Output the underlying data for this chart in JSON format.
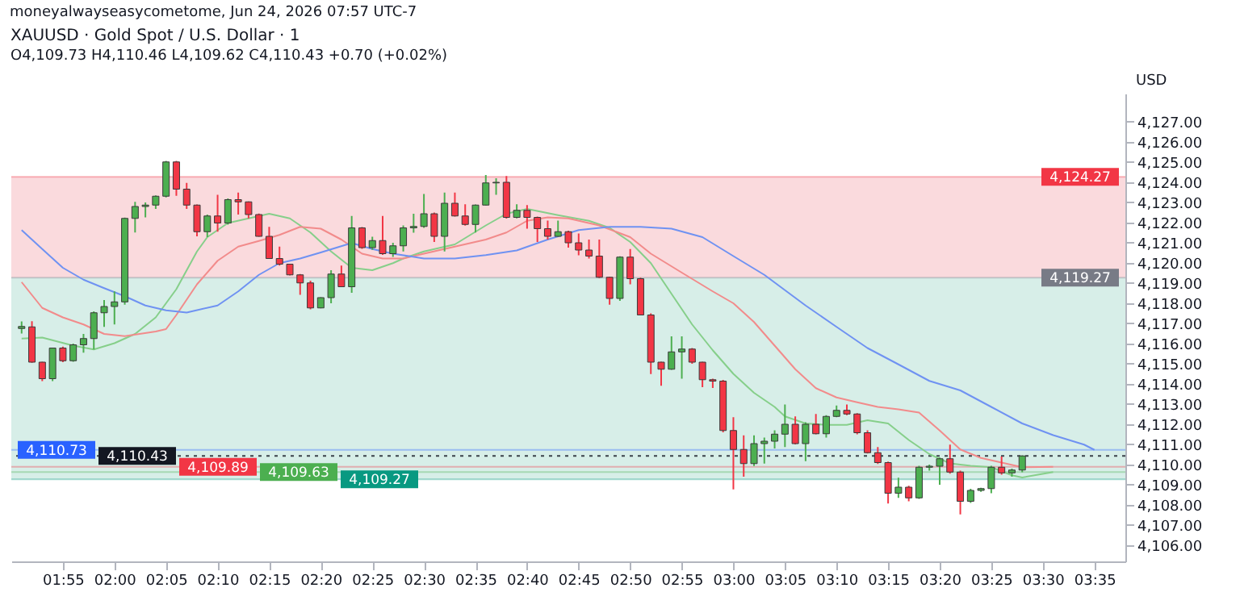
{
  "chart_data": {
    "type": "candlestick",
    "title": "XAUUSD · Gold Spot / U.S. Dollar · 1",
    "subtitle": "O4,109.73 H4,110.46 L4,109.62 C4,110.43 +0.70 (+0.02%)",
    "annotations": [
      "moneyalwayseasycometome, Jun 24, 2026 07:57 UTC-7"
    ],
    "ylabel": "USD",
    "x": [
      "2026-06-24T01:51",
      "2026-06-24T01:52",
      "2026-06-24T01:53",
      "2026-06-24T01:54",
      "2026-06-24T01:55",
      "2026-06-24T01:56",
      "2026-06-24T01:57",
      "2026-06-24T01:58",
      "2026-06-24T01:59",
      "2026-06-24T02:00",
      "2026-06-24T02:01",
      "2026-06-24T02:02",
      "2026-06-24T02:03",
      "2026-06-24T02:04",
      "2026-06-24T02:05",
      "2026-06-24T02:06",
      "2026-06-24T02:07",
      "2026-06-24T02:08",
      "2026-06-24T02:09",
      "2026-06-24T02:10",
      "2026-06-24T02:11",
      "2026-06-24T02:12",
      "2026-06-24T02:13",
      "2026-06-24T02:14",
      "2026-06-24T02:15",
      "2026-06-24T02:16",
      "2026-06-24T02:17",
      "2026-06-24T02:18",
      "2026-06-24T02:19",
      "2026-06-24T02:20",
      "2026-06-24T02:21",
      "2026-06-24T02:22",
      "2026-06-24T02:23",
      "2026-06-24T02:24",
      "2026-06-24T02:25",
      "2026-06-24T02:26",
      "2026-06-24T02:27",
      "2026-06-24T02:28",
      "2026-06-24T02:29",
      "2026-06-24T02:30",
      "2026-06-24T02:31",
      "2026-06-24T02:32",
      "2026-06-24T02:33",
      "2026-06-24T02:34",
      "2026-06-24T02:35",
      "2026-06-24T02:36",
      "2026-06-24T02:37",
      "2026-06-24T02:38",
      "2026-06-24T02:39",
      "2026-06-24T02:40",
      "2026-06-24T02:41",
      "2026-06-24T02:42",
      "2026-06-24T02:43",
      "2026-06-24T02:44",
      "2026-06-24T02:45",
      "2026-06-24T02:46",
      "2026-06-24T02:47",
      "2026-06-24T02:48",
      "2026-06-24T02:49",
      "2026-06-24T02:50",
      "2026-06-24T02:51",
      "2026-06-24T02:52",
      "2026-06-24T02:53",
      "2026-06-24T02:54",
      "2026-06-24T02:55",
      "2026-06-24T02:56",
      "2026-06-24T02:57",
      "2026-06-24T02:58",
      "2026-06-24T02:59",
      "2026-06-24T03:00",
      "2026-06-24T03:01",
      "2026-06-24T03:02",
      "2026-06-24T03:03",
      "2026-06-24T03:04",
      "2026-06-24T03:05",
      "2026-06-24T03:06",
      "2026-06-24T03:07",
      "2026-06-24T03:08",
      "2026-06-24T03:09",
      "2026-06-24T03:10",
      "2026-06-24T03:11",
      "2026-06-24T03:12",
      "2026-06-24T03:13",
      "2026-06-24T03:14",
      "2026-06-24T03:15",
      "2026-06-24T03:16",
      "2026-06-24T03:17",
      "2026-06-24T03:18",
      "2026-06-24T03:19",
      "2026-06-24T03:20",
      "2026-06-24T03:21",
      "2026-06-24T03:22",
      "2026-06-24T03:23",
      "2026-06-24T03:24",
      "2026-06-24T03:25",
      "2026-06-24T03:26",
      "2026-06-24T03:27",
      "2026-06-24T03:28"
    ],
    "ohlc": [
      [
        4116.75,
        4117.1,
        4116.5,
        4116.85
      ],
      [
        4116.83,
        4117.11,
        4115.05,
        4115.08
      ],
      [
        4115.08,
        4115.1,
        4114.14,
        4114.26
      ],
      [
        4114.26,
        4115.8,
        4114.14,
        4115.78
      ],
      [
        4115.78,
        4115.85,
        4115.08,
        4115.15
      ],
      [
        4115.15,
        4116.0,
        4115.1,
        4115.94
      ],
      [
        4115.94,
        4116.48,
        4115.55,
        4116.25
      ],
      [
        4116.25,
        4117.6,
        4115.71,
        4117.53
      ],
      [
        4117.53,
        4118.16,
        4116.83,
        4117.84
      ],
      [
        4117.84,
        4118.59,
        4116.95,
        4118.07
      ],
      [
        4118.07,
        4122.25,
        4117.93,
        4122.21
      ],
      [
        4122.21,
        4123.03,
        4121.51,
        4122.8
      ],
      [
        4122.8,
        4123.0,
        4122.26,
        4122.87
      ],
      [
        4122.87,
        4123.35,
        4122.68,
        4123.31
      ],
      [
        4123.31,
        4125.06,
        4123.25,
        4125.01
      ],
      [
        4125.01,
        4125.06,
        4123.33,
        4123.66
      ],
      [
        4123.66,
        4123.97,
        4122.68,
        4122.87
      ],
      [
        4122.87,
        4122.9,
        4121.32,
        4121.55
      ],
      [
        4121.55,
        4122.4,
        4121.28,
        4122.33
      ],
      [
        4122.33,
        4123.38,
        4121.55,
        4121.98
      ],
      [
        4121.98,
        4123.2,
        4121.9,
        4123.14
      ],
      [
        4123.14,
        4123.49,
        4122.4,
        4123.03
      ],
      [
        4123.03,
        4123.05,
        4122.21,
        4122.4
      ],
      [
        4122.4,
        4122.45,
        4121.3,
        4121.32
      ],
      [
        4121.32,
        4121.79,
        4120.2,
        4120.22
      ],
      [
        4120.22,
        4120.81,
        4119.87,
        4119.94
      ],
      [
        4119.94,
        4119.95,
        4119.38,
        4119.41
      ],
      [
        4119.41,
        4119.45,
        4118.42,
        4119.01
      ],
      [
        4119.01,
        4119.12,
        4117.7,
        4117.77
      ],
      [
        4117.77,
        4118.3,
        4117.75,
        4118.28
      ],
      [
        4118.28,
        4119.64,
        4118.0,
        4119.45
      ],
      [
        4119.45,
        4119.87,
        4118.8,
        4118.82
      ],
      [
        4118.82,
        4122.33,
        4118.52,
        4121.74
      ],
      [
        4121.74,
        4121.78,
        4120.7,
        4120.76
      ],
      [
        4120.76,
        4121.3,
        4120.65,
        4121.11
      ],
      [
        4121.11,
        4122.33,
        4120.4,
        4120.46
      ],
      [
        4120.46,
        4121.0,
        4120.3,
        4120.85
      ],
      [
        4120.85,
        4121.86,
        4120.57,
        4121.74
      ],
      [
        4121.74,
        4122.44,
        4121.5,
        4121.81
      ],
      [
        4121.81,
        4123.42,
        4121.74,
        4122.44
      ],
      [
        4122.44,
        4122.5,
        4121.04,
        4121.32
      ],
      [
        4121.32,
        4123.49,
        4120.57,
        4122.96
      ],
      [
        4122.96,
        4123.49,
        4122.3,
        4122.33
      ],
      [
        4122.33,
        4122.91,
        4121.85,
        4121.91
      ],
      [
        4121.91,
        4122.9,
        4121.51,
        4122.87
      ],
      [
        4122.87,
        4124.36,
        4122.85,
        4123.97
      ],
      [
        4123.97,
        4124.2,
        4123.38,
        4124.0
      ],
      [
        4124.0,
        4124.31,
        4122.2,
        4122.26
      ],
      [
        4122.26,
        4122.91,
        4122.21,
        4122.61
      ],
      [
        4122.61,
        4122.87,
        4121.7,
        4122.26
      ],
      [
        4122.26,
        4122.3,
        4121.04,
        4121.7
      ],
      [
        4121.7,
        4122.1,
        4121.16,
        4121.32
      ],
      [
        4121.32,
        4122.1,
        4121.3,
        4121.55
      ],
      [
        4121.55,
        4121.6,
        4120.76,
        4121.0
      ],
      [
        4121.0,
        4121.46,
        4120.38,
        4120.64
      ],
      [
        4120.64,
        4121.16,
        4120.22,
        4120.34
      ],
      [
        4120.34,
        4121.16,
        4119.25,
        4119.29
      ],
      [
        4119.29,
        4119.32,
        4117.93,
        4118.24
      ],
      [
        4118.24,
        4120.33,
        4118.12,
        4120.29
      ],
      [
        4120.29,
        4120.69,
        4118.94,
        4119.22
      ],
      [
        4119.22,
        4119.27,
        4117.4,
        4117.42
      ],
      [
        4117.42,
        4117.5,
        4114.49,
        4115.08
      ],
      [
        4115.08,
        4115.1,
        4113.91,
        4114.73
      ],
      [
        4114.73,
        4116.36,
        4114.7,
        4115.59
      ],
      [
        4115.59,
        4116.36,
        4114.26,
        4115.73
      ],
      [
        4115.73,
        4115.78,
        4115.0,
        4115.08
      ],
      [
        4115.08,
        4115.1,
        4113.84,
        4114.21
      ],
      [
        4114.21,
        4114.26,
        4113.8,
        4114.14
      ],
      [
        4114.14,
        4114.2,
        4111.6,
        4111.69
      ],
      [
        4111.69,
        4112.35,
        4108.77,
        4110.75
      ],
      [
        4110.75,
        4111.45,
        4109.4,
        4110.05
      ],
      [
        4110.05,
        4111.45,
        4109.93,
        4111.04
      ],
      [
        4111.04,
        4111.34,
        4110.05,
        4111.16
      ],
      [
        4111.16,
        4111.7,
        4110.8,
        4111.51
      ],
      [
        4111.51,
        4112.98,
        4110.87,
        4112.0
      ],
      [
        4112.0,
        4112.39,
        4111.0,
        4111.04
      ],
      [
        4111.04,
        4112.1,
        4110.17,
        4112.0
      ],
      [
        4112.0,
        4112.51,
        4111.5,
        4111.53
      ],
      [
        4111.53,
        4112.45,
        4111.34,
        4112.39
      ],
      [
        4112.39,
        4112.93,
        4112.35,
        4112.69
      ],
      [
        4112.69,
        4112.98,
        4112.45,
        4112.51
      ],
      [
        4112.51,
        4112.55,
        4111.5,
        4111.58
      ],
      [
        4111.58,
        4111.7,
        4110.55,
        4110.59
      ],
      [
        4110.59,
        4110.87,
        4110.03,
        4110.1
      ],
      [
        4110.1,
        4110.15,
        4108.07,
        4108.58
      ],
      [
        4108.58,
        4109.35,
        4108.35,
        4108.88
      ],
      [
        4108.88,
        4108.95,
        4108.18,
        4108.35
      ],
      [
        4108.35,
        4109.94,
        4108.3,
        4109.87
      ],
      [
        4109.87,
        4110.0,
        4109.7,
        4109.92
      ],
      [
        4109.92,
        4110.35,
        4109.0,
        4110.29
      ],
      [
        4110.29,
        4110.99,
        4109.55,
        4109.63
      ],
      [
        4109.63,
        4109.7,
        4107.53,
        4108.18
      ],
      [
        4108.18,
        4108.8,
        4108.1,
        4108.72
      ],
      [
        4108.72,
        4108.85,
        4108.65,
        4108.81
      ],
      [
        4108.81,
        4109.94,
        4108.58,
        4109.87
      ],
      [
        4109.87,
        4110.4,
        4109.5,
        4109.59
      ],
      [
        4109.59,
        4109.8,
        4109.4,
        4109.73
      ],
      [
        4109.73,
        4110.46,
        4109.62,
        4110.43
      ]
    ],
    "colors": [
      "#4caf50",
      "#f23645",
      "#f23645",
      "#4caf50",
      "#f23645",
      "#4caf50",
      "#4caf50",
      "#4caf50",
      "#4caf50",
      "#4caf50",
      "#4caf50",
      "#4caf50",
      "#4caf50",
      "#4caf50",
      "#4caf50",
      "#f23645",
      "#f23645",
      "#f23645",
      "#4caf50",
      "#f23645",
      "#4caf50",
      "#f23645",
      "#f23645",
      "#f23645",
      "#f23645",
      "#f23645",
      "#f23645",
      "#f23645",
      "#f23645",
      "#4caf50",
      "#4caf50",
      "#f23645",
      "#4caf50",
      "#f23645",
      "#4caf50",
      "#f23645",
      "#4caf50",
      "#4caf50",
      "#4caf50",
      "#4caf50",
      "#f23645",
      "#4caf50",
      "#f23645",
      "#f23645",
      "#4caf50",
      "#4caf50",
      "#4caf50",
      "#f23645",
      "#4caf50",
      "#f23645",
      "#f23645",
      "#f23645",
      "#4caf50",
      "#f23645",
      "#f23645",
      "#f23645",
      "#f23645",
      "#f23645",
      "#4caf50",
      "#f23645",
      "#f23645",
      "#f23645",
      "#f23645",
      "#4caf50",
      "#4caf50",
      "#f23645",
      "#f23645",
      "#f23645",
      "#f23645",
      "#f23645",
      "#f23645",
      "#4caf50",
      "#4caf50",
      "#4caf50",
      "#4caf50",
      "#f23645",
      "#4caf50",
      "#f23645",
      "#4caf50",
      "#4caf50",
      "#f23645",
      "#f23645",
      "#f23645",
      "#f23645",
      "#f23645",
      "#4caf50",
      "#f23645",
      "#4caf50",
      "#4caf50",
      "#4caf50",
      "#f23645",
      "#f23645",
      "#4caf50",
      "#4caf50",
      "#4caf50",
      "#f23645",
      "#4caf50",
      "#4caf50"
    ],
    "series": [
      {
        "type": "line",
        "color": "#86cf8a",
        "x": [
          "2026-06-24T01:51",
          "2026-06-24T01:53",
          "2026-06-24T01:56",
          "2026-06-24T01:58",
          "2026-06-24T02:00",
          "2026-06-24T02:02",
          "2026-06-24T02:04",
          "2026-06-24T02:06",
          "2026-06-24T02:08",
          "2026-06-24T02:09",
          "2026-06-24T02:11",
          "2026-06-24T02:13",
          "2026-06-24T02:15",
          "2026-06-24T02:17",
          "2026-06-24T02:19",
          "2026-06-24T02:21",
          "2026-06-24T02:23",
          "2026-06-24T02:25",
          "2026-06-24T02:27",
          "2026-06-24T02:28",
          "2026-06-24T02:30",
          "2026-06-24T02:33",
          "2026-06-24T02:36",
          "2026-06-24T02:38",
          "2026-06-24T02:40",
          "2026-06-24T02:43",
          "2026-06-24T02:46",
          "2026-06-24T02:48",
          "2026-06-24T02:50",
          "2026-06-24T02:52",
          "2026-06-24T02:54",
          "2026-06-24T02:56",
          "2026-06-24T02:58",
          "2026-06-24T03:00",
          "2026-06-24T03:02",
          "2026-06-24T03:04",
          "2026-06-24T03:05",
          "2026-06-24T03:07",
          "2026-06-24T03:09",
          "2026-06-24T03:11",
          "2026-06-24T03:13",
          "2026-06-24T03:15",
          "2026-06-24T03:17",
          "2026-06-24T03:19",
          "2026-06-24T03:21",
          "2026-06-24T03:23",
          "2026-06-24T03:25",
          "2026-06-24T03:27",
          "2026-06-24T03:28",
          "2026-06-24T03:31"
        ],
        "values": [
          4116.25,
          4116.3,
          4115.9,
          4115.71,
          4116.02,
          4116.48,
          4117.3,
          4118.7,
          4120.57,
          4121.28,
          4121.98,
          4122.21,
          4122.44,
          4122.21,
          4121.51,
          4120.57,
          4119.76,
          4119.64,
          4119.99,
          4120.22,
          4120.57,
          4120.92,
          4121.86,
          4122.44,
          4122.68,
          4122.37,
          4122.09,
          4121.74,
          4121.04,
          4119.99,
          4118.47,
          4116.95,
          4115.67,
          4114.5,
          4113.56,
          4112.86,
          4112.39,
          4112.04,
          4111.97,
          4111.97,
          4112.2,
          4112.04,
          4111.22,
          4110.52,
          4110.06,
          4109.94,
          4109.87,
          4109.47,
          4109.36,
          4109.63
        ]
      },
      {
        "type": "line",
        "color": "#f28b8b",
        "x": [
          "2026-06-24T01:51",
          "2026-06-24T01:53",
          "2026-06-24T01:55",
          "2026-06-24T01:57",
          "2026-06-24T01:59",
          "2026-06-24T02:01",
          "2026-06-24T02:04",
          "2026-06-24T02:05",
          "2026-06-24T02:06",
          "2026-06-24T02:08",
          "2026-06-24T02:10",
          "2026-06-24T02:12",
          "2026-06-24T02:14",
          "2026-06-24T02:16",
          "2026-06-24T02:18",
          "2026-06-24T02:20",
          "2026-06-24T02:22",
          "2026-06-24T02:24",
          "2026-06-24T02:26",
          "2026-06-24T02:28",
          "2026-06-24T02:30",
          "2026-06-24T02:33",
          "2026-06-24T02:36",
          "2026-06-24T02:38",
          "2026-06-24T02:40",
          "2026-06-24T02:42",
          "2026-06-24T02:44",
          "2026-06-24T02:47",
          "2026-06-24T02:50",
          "2026-06-24T02:52",
          "2026-06-24T02:55",
          "2026-06-24T02:58",
          "2026-06-24T03:00",
          "2026-06-24T03:02",
          "2026-06-24T03:04",
          "2026-06-24T03:06",
          "2026-06-24T03:08",
          "2026-06-24T03:10",
          "2026-06-24T03:12",
          "2026-06-24T03:14",
          "2026-06-24T03:16",
          "2026-06-24T03:18",
          "2026-06-24T03:20",
          "2026-06-24T03:22",
          "2026-06-24T03:24",
          "2026-06-24T03:26",
          "2026-06-24T03:28",
          "2026-06-24T03:31"
        ],
        "values": [
          4119.05,
          4117.77,
          4117.3,
          4116.95,
          4116.48,
          4116.37,
          4116.6,
          4116.72,
          4117.42,
          4118.94,
          4120.11,
          4120.81,
          4121.09,
          4121.39,
          4121.79,
          4121.7,
          4121.16,
          4120.46,
          4120.22,
          4120.22,
          4120.46,
          4120.81,
          4121.16,
          4121.51,
          4122.09,
          4122.26,
          4122.21,
          4121.86,
          4121.28,
          4120.46,
          4119.52,
          4118.59,
          4118.0,
          4117.07,
          4115.9,
          4114.73,
          4113.79,
          4113.33,
          4113.09,
          4112.86,
          4112.74,
          4112.58,
          4111.69,
          4110.75,
          4110.33,
          4110.1,
          4109.87,
          4109.89
        ]
      },
      {
        "type": "line",
        "color": "#6f92f2",
        "x": [
          "2026-06-24T01:51",
          "2026-06-24T01:53",
          "2026-06-24T01:55",
          "2026-06-24T01:57",
          "2026-06-24T01:59",
          "2026-06-24T02:01",
          "2026-06-24T02:03",
          "2026-06-24T02:05",
          "2026-06-24T02:07",
          "2026-06-24T02:10",
          "2026-06-24T02:12",
          "2026-06-24T02:14",
          "2026-06-24T02:16",
          "2026-06-24T02:18",
          "2026-06-24T02:20",
          "2026-06-24T02:23",
          "2026-06-24T02:25",
          "2026-06-24T02:27",
          "2026-06-24T02:30",
          "2026-06-24T02:33",
          "2026-06-24T02:36",
          "2026-06-24T02:39",
          "2026-06-24T02:42",
          "2026-06-24T02:45",
          "2026-06-24T02:48",
          "2026-06-24T02:51",
          "2026-06-24T02:54",
          "2026-06-24T02:57",
          "2026-06-24T03:00",
          "2026-06-24T03:03",
          "2026-06-24T03:07",
          "2026-06-24T03:10",
          "2026-06-24T03:13",
          "2026-06-24T03:16",
          "2026-06-24T03:19",
          "2026-06-24T03:22",
          "2026-06-24T03:25",
          "2026-06-24T03:28",
          "2026-06-24T03:31",
          "2026-06-24T03:34",
          "2026-06-24T03:35"
        ],
        "values": [
          4121.63,
          4120.69,
          4119.76,
          4119.17,
          4118.75,
          4118.35,
          4117.89,
          4117.65,
          4117.54,
          4117.89,
          4118.59,
          4119.41,
          4119.99,
          4120.22,
          4120.52,
          4120.99,
          4120.69,
          4120.46,
          4120.22,
          4120.22,
          4120.39,
          4120.62,
          4121.16,
          4121.63,
          4121.79,
          4121.79,
          4121.7,
          4121.28,
          4120.34,
          4119.41,
          4117.89,
          4116.83,
          4115.78,
          4114.97,
          4114.15,
          4113.68,
          4112.86,
          4112.04,
          4111.46,
          4110.99,
          4110.73
        ]
      }
    ],
    "bands": [
      {
        "axis": "y",
        "from": 4119.27,
        "to": 4124.27,
        "color": "#f9d6d9"
      },
      {
        "axis": "y",
        "from": 4109.27,
        "to": 4119.27,
        "color": "#d3ece6"
      }
    ],
    "ref_lines": [
      {
        "axis": "y",
        "value": 4124.27,
        "label": "4,124.27",
        "color": "#f23645"
      },
      {
        "axis": "y",
        "value": 4119.27,
        "label": "4,119.27",
        "color": "#787b86"
      },
      {
        "axis": "y",
        "value": 4110.73,
        "label": "4,110.73",
        "color": "#2962ff"
      },
      {
        "axis": "y",
        "value": 4110.43,
        "label": "4,110.43",
        "color": "#131722",
        "line_style": "dotted"
      },
      {
        "axis": "y",
        "value": 4109.89,
        "label": "4,109.89",
        "color": "#f23645"
      },
      {
        "axis": "y",
        "value": 4109.63,
        "label": "4,109.63",
        "color": "#4caf50"
      },
      {
        "axis": "y",
        "value": 4109.27,
        "label": "4,109.27",
        "color": "#089981"
      }
    ],
    "xlim": [
      "2026-06-24T01:50",
      "2026-06-24T03:38"
    ],
    "xticks": [
      {
        "value": "2026-06-24T01:55",
        "label": "01:55"
      },
      {
        "value": "2026-06-24T02:00",
        "label": "02:00"
      },
      {
        "value": "2026-06-24T02:05",
        "label": "02:05"
      },
      {
        "value": "2026-06-24T02:10",
        "label": "02:10"
      },
      {
        "value": "2026-06-24T02:15",
        "label": "02:15"
      },
      {
        "value": "2026-06-24T02:20",
        "label": "02:20"
      },
      {
        "value": "2026-06-24T02:25",
        "label": "02:25"
      },
      {
        "value": "2026-06-24T02:30",
        "label": "02:30"
      },
      {
        "value": "2026-06-24T02:35",
        "label": "02:35"
      },
      {
        "value": "2026-06-24T02:40",
        "label": "02:40"
      },
      {
        "value": "2026-06-24T02:45",
        "label": "02:45"
      },
      {
        "value": "2026-06-24T02:50",
        "label": "02:50"
      },
      {
        "value": "2026-06-24T02:55",
        "label": "02:55"
      },
      {
        "value": "2026-06-24T03:00",
        "label": "03:00"
      },
      {
        "value": "2026-06-24T03:05",
        "label": "03:05"
      },
      {
        "value": "2026-06-24T03:10",
        "label": "03:10"
      },
      {
        "value": "2026-06-24T03:15",
        "label": "03:15"
      },
      {
        "value": "2026-06-24T03:20",
        "label": "03:20"
      },
      {
        "value": "2026-06-24T03:25",
        "label": "03:25"
      },
      {
        "value": "2026-06-24T03:30",
        "label": "03:30"
      },
      {
        "value": "2026-06-24T03:35",
        "label": "03:35"
      }
    ],
    "ylim": [
      4105.2,
      4128.4
    ],
    "yticks": [
      {
        "value": 4106,
        "label": "4,106.00"
      },
      {
        "value": 4107,
        "label": "4,107.00"
      },
      {
        "value": 4108,
        "label": "4,108.00"
      },
      {
        "value": 4109,
        "label": "4,109.00"
      },
      {
        "value": 4110,
        "label": "4,110.00"
      },
      {
        "value": 4111,
        "label": "4,111.00"
      },
      {
        "value": 4112,
        "label": "4,112.00"
      },
      {
        "value": 4113,
        "label": "4,113.00"
      },
      {
        "value": 4114,
        "label": "4,114.00"
      },
      {
        "value": 4115,
        "label": "4,115.00"
      },
      {
        "value": 4116,
        "label": "4,116.00"
      },
      {
        "value": 4117,
        "label": "4,117.00"
      },
      {
        "value": 4118,
        "label": "4,118.00"
      },
      {
        "value": 4119,
        "label": "4,119.00"
      },
      {
        "value": 4120,
        "label": "4,120.00"
      },
      {
        "value": 4121,
        "label": "4,121.00"
      },
      {
        "value": 4122,
        "label": "4,122.00"
      },
      {
        "value": 4123,
        "label": "4,123.00"
      },
      {
        "value": 4124,
        "label": "4,124.00"
      },
      {
        "value": 4125,
        "label": "4,125.00"
      },
      {
        "value": 4126,
        "label": "4,126.00"
      },
      {
        "value": 4127,
        "label": "4,127.00"
      }
    ]
  }
}
